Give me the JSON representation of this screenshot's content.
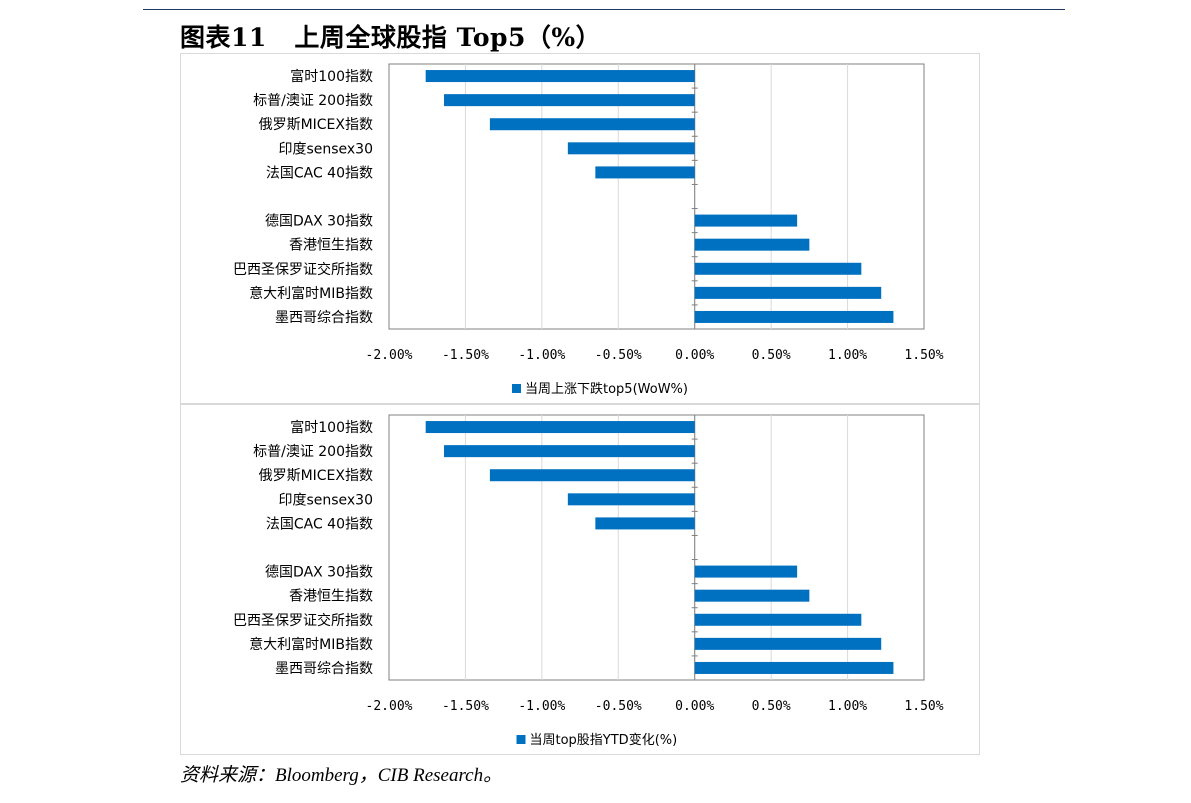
{
  "figure": {
    "title": "图表11   上周全球股指 Top5（%）",
    "source": "资料来源：Bloomberg，CIB Research。"
  },
  "colors": {
    "bar": "#0070c0",
    "grid": "#d9d9d9",
    "axis": "#808080"
  },
  "chart_data": [
    {
      "type": "bar",
      "orientation": "horizontal",
      "categories": [
        "富时100指数",
        "标普/澳证 200指数",
        "俄罗斯MICEX指数",
        "印度sensex30",
        "法国CAC 40指数",
        "",
        "德国DAX 30指数",
        "香港恒生指数",
        "巴西圣保罗证交所指数",
        "意大利富时MIB指数",
        "墨西哥综合指数"
      ],
      "series": [
        {
          "name": "当周上涨下跌top5(WoW%)",
          "values": [
            -1.76,
            -1.64,
            -1.34,
            -0.83,
            -0.65,
            null,
            0.67,
            0.75,
            1.09,
            1.22,
            1.3
          ]
        }
      ],
      "xlim": [
        -2.0,
        1.5
      ],
      "xticks": [
        "-2.00%",
        "-1.50%",
        "-1.00%",
        "-0.50%",
        "0.00%",
        "0.50%",
        "1.00%",
        "1.50%"
      ],
      "grid": true,
      "legend": "bottom"
    },
    {
      "type": "bar",
      "orientation": "horizontal",
      "categories": [
        "富时100指数",
        "标普/澳证 200指数",
        "俄罗斯MICEX指数",
        "印度sensex30",
        "法国CAC 40指数",
        "",
        "德国DAX 30指数",
        "香港恒生指数",
        "巴西圣保罗证交所指数",
        "意大利富时MIB指数",
        "墨西哥综合指数"
      ],
      "series": [
        {
          "name": "当周top股指YTD变化(%)",
          "values": [
            -1.76,
            -1.64,
            -1.34,
            -0.83,
            -0.65,
            null,
            0.67,
            0.75,
            1.09,
            1.22,
            1.3
          ]
        }
      ],
      "xlim": [
        -2.0,
        1.5
      ],
      "xticks": [
        "-2.00%",
        "-1.50%",
        "-1.00%",
        "-0.50%",
        "0.00%",
        "0.50%",
        "1.00%",
        "1.50%"
      ],
      "grid": true,
      "legend": "bottom"
    }
  ]
}
